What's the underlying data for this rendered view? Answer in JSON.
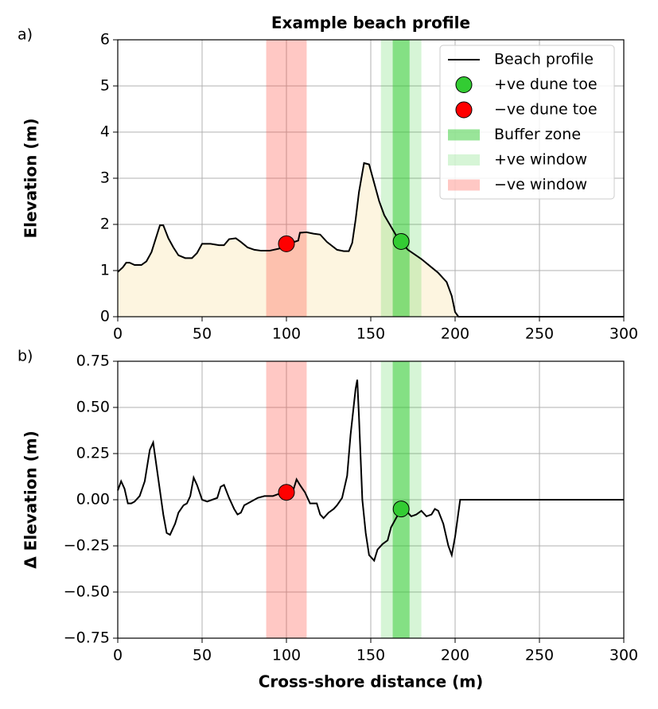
{
  "chart_data": [
    {
      "type": "line",
      "panel_label": "a)",
      "title": "Example beach profile",
      "ylabel": "Elevation (m)",
      "xlim": [
        0,
        300
      ],
      "ylim": [
        0,
        6
      ],
      "xticks": [
        0,
        50,
        100,
        150,
        200,
        250,
        300
      ],
      "yticks": [
        0,
        1,
        2,
        3,
        4,
        5,
        6
      ],
      "grid": true,
      "legend": "upper right",
      "fill_color": "#fdf5e0",
      "x": [
        0,
        3,
        5,
        7,
        10,
        14,
        17,
        20,
        25,
        27,
        30,
        33,
        36,
        40,
        44,
        47,
        50,
        55,
        60,
        63,
        66,
        70,
        73,
        77,
        81,
        85,
        90,
        95,
        100,
        103,
        107,
        108,
        112,
        116,
        120,
        124,
        130,
        134,
        137,
        139,
        141,
        143,
        146,
        149,
        152,
        155,
        158,
        162,
        166,
        168,
        172,
        176,
        180,
        185,
        190,
        195,
        198,
        200,
        202,
        300
      ],
      "series": [
        {
          "name": "Beach profile",
          "color": "#000000",
          "values": [
            0.97,
            1.07,
            1.17,
            1.17,
            1.12,
            1.12,
            1.2,
            1.4,
            1.98,
            1.98,
            1.7,
            1.5,
            1.33,
            1.27,
            1.27,
            1.38,
            1.58,
            1.58,
            1.55,
            1.55,
            1.68,
            1.7,
            1.62,
            1.5,
            1.45,
            1.43,
            1.43,
            1.47,
            1.52,
            1.6,
            1.65,
            1.82,
            1.83,
            1.8,
            1.78,
            1.62,
            1.45,
            1.42,
            1.42,
            1.6,
            2.1,
            2.7,
            3.33,
            3.3,
            2.9,
            2.5,
            2.2,
            1.95,
            1.7,
            1.62,
            1.45,
            1.35,
            1.25,
            1.1,
            0.95,
            0.75,
            0.45,
            0.1,
            0,
            0
          ]
        }
      ],
      "points": [
        {
          "name": "+ve dune toe",
          "color": "#33cc33",
          "x": 168,
          "value": 1.63
        },
        {
          "name": "−ve dune toe",
          "color": "#ff0000",
          "x": 100,
          "value": 1.58
        }
      ],
      "spans": [
        {
          "name": "Buffer zone",
          "color": "#33cc33",
          "opacity": 0.5,
          "x": [
            163,
            173
          ]
        },
        {
          "name": "+ve window",
          "color": "#33cc33",
          "opacity": 0.2,
          "x": [
            156,
            180
          ]
        },
        {
          "name": "−ve window",
          "color": "#ff4a3d",
          "opacity": 0.3,
          "x": [
            88,
            112
          ]
        }
      ]
    },
    {
      "type": "line",
      "panel_label": "b)",
      "ylabel": "Δ Elevation (m)",
      "xlabel": "Cross-shore distance (m)",
      "xlim": [
        0,
        300
      ],
      "ylim": [
        -0.75,
        0.75
      ],
      "xticks": [
        0,
        50,
        100,
        150,
        200,
        250,
        300
      ],
      "yticks": [
        {
          "value": -0.75,
          "label": "−0.75"
        },
        {
          "value": -0.5,
          "label": "−0.50"
        },
        {
          "value": -0.25,
          "label": "−0.25"
        },
        {
          "value": 0,
          "label": "0.00"
        },
        0.25,
        {
          "value": 0.5,
          "label": "0.50"
        },
        0.75
      ],
      "grid": true,
      "x": [
        0,
        2,
        4,
        6,
        8,
        10,
        13,
        16,
        19,
        21,
        23,
        25,
        27,
        29,
        31,
        34,
        36,
        39,
        41,
        43,
        45,
        47,
        50,
        53,
        56,
        59,
        61,
        63,
        66,
        69,
        71,
        73,
        75,
        79,
        83,
        87,
        92,
        95,
        100,
        104,
        106,
        108,
        111,
        114,
        118,
        120,
        122,
        125,
        128,
        130,
        133,
        136,
        138,
        141,
        142,
        143,
        145,
        147,
        149,
        152,
        154,
        157,
        160,
        162,
        165,
        168,
        171,
        174,
        177,
        180,
        183,
        186,
        188,
        190,
        193,
        196,
        198,
        200,
        203,
        300
      ],
      "series": [
        {
          "color": "#000000",
          "values": [
            0.05,
            0.1,
            0.06,
            -0.02,
            -0.02,
            -0.01,
            0.02,
            0.1,
            0.27,
            0.31,
            0.18,
            0.05,
            -0.08,
            -0.18,
            -0.19,
            -0.13,
            -0.07,
            -0.03,
            -0.02,
            0.02,
            0.12,
            0.08,
            0,
            -0.01,
            0,
            0.01,
            0.07,
            0.08,
            0.01,
            -0.05,
            -0.08,
            -0.07,
            -0.03,
            -0.01,
            0.01,
            0.02,
            0.02,
            0.03,
            0.04,
            0.05,
            0.11,
            0.08,
            0.04,
            -0.02,
            -0.02,
            -0.08,
            -0.1,
            -0.07,
            -0.05,
            -0.03,
            0.01,
            0.13,
            0.35,
            0.6,
            0.65,
            0.45,
            0,
            -0.18,
            -0.3,
            -0.33,
            -0.27,
            -0.24,
            -0.22,
            -0.15,
            -0.1,
            -0.05,
            -0.06,
            -0.09,
            -0.08,
            -0.06,
            -0.09,
            -0.08,
            -0.05,
            -0.06,
            -0.13,
            -0.25,
            -0.3,
            -0.2,
            0,
            0
          ]
        }
      ],
      "points": [
        {
          "color": "#33cc33",
          "x": 168,
          "value": -0.05
        },
        {
          "color": "#ff0000",
          "x": 100,
          "value": 0.04
        }
      ],
      "spans": [
        {
          "color": "#33cc33",
          "opacity": 0.5,
          "x": [
            163,
            173
          ]
        },
        {
          "color": "#33cc33",
          "opacity": 0.2,
          "x": [
            156,
            180
          ]
        },
        {
          "color": "#ff4a3d",
          "opacity": 0.3,
          "x": [
            88,
            112
          ]
        }
      ]
    }
  ]
}
